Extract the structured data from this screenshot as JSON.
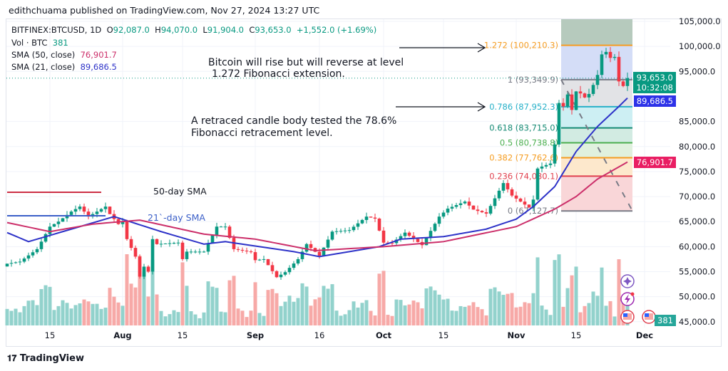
{
  "header": {
    "publisher": "edithchuama published on TradingView.com, Nov 27, 2024 13:27 UTC"
  },
  "legend": {
    "symbol": "BITFINEX:BTCUSD, 1D",
    "o_label": "O",
    "o": "92,087.0",
    "h_label": "H",
    "h": "94,070.0",
    "l_label": "L",
    "l": "91,904.0",
    "c_label": "C",
    "c": "93,653.0",
    "change": "+1,552.0 (+1.69%)",
    "vol_label": "Vol · BTC",
    "vol": "381",
    "sma50_label": "SMA (50, close)",
    "sma50": "76,901.7",
    "sma21_label": "SMA (21, close)",
    "sma21": "89,686.5"
  },
  "annotations": {
    "top_line1": "Bitcoin will rise but will reverse at level",
    "top_line2": "1.272 Fibonacci extension.",
    "mid_line1": "A retraced candle body tested the 78.6%",
    "mid_line2": "Fibonacci retracement level.",
    "sma50_text": "50-day SMA",
    "sma21_text": "21`-day SMA"
  },
  "tags": {
    "price": "93,653.0",
    "countdown": "10:32:08",
    "sma21": "89,686.5",
    "sma50": "76,901.7",
    "volume": "381"
  },
  "colors": {
    "up": "#089981",
    "down": "#f23645",
    "sma21": "#2d32c8",
    "sma50": "#cc2f6a",
    "vol_up": "#92d2cc",
    "vol_down": "#f7a9a7"
  },
  "footer": {
    "logo": "TradingView"
  },
  "chart_data": {
    "type": "candlestick",
    "ylim": [
      45000,
      105000
    ],
    "y_ticks": [
      "105,000.0",
      "100,000.0",
      "95,000.0",
      "85,000.0",
      "80,000.0",
      "75,000.0",
      "70,000.0",
      "65,000.0",
      "60,000.0",
      "55,000.0",
      "50,000.0",
      "45,000.0"
    ],
    "x_ticks": [
      [
        "2024-07-15",
        "15"
      ],
      [
        "2024-08-01",
        "Aug"
      ],
      [
        "2024-08-15",
        "15"
      ],
      [
        "2024-09-01",
        "Sep"
      ],
      [
        "2024-09-16",
        "16"
      ],
      [
        "2024-10-01",
        "Oct"
      ],
      [
        "2024-10-15",
        "15"
      ],
      [
        "2024-11-01",
        "Nov"
      ],
      [
        "2024-11-15",
        "15"
      ],
      [
        "2024-12-01",
        "Dec"
      ]
    ],
    "close_keyframes": [
      [
        "2024-07-05",
        56600
      ],
      [
        "2024-07-08",
        57000
      ],
      [
        "2024-07-12",
        59500
      ],
      [
        "2024-07-15",
        64000
      ],
      [
        "2024-07-17",
        65000
      ],
      [
        "2024-07-20",
        67000
      ],
      [
        "2024-07-22",
        68000
      ],
      [
        "2024-07-24",
        66000
      ],
      [
        "2024-07-28",
        68000
      ],
      [
        "2024-07-29",
        66500
      ],
      [
        "2024-07-31",
        64500
      ],
      [
        "2024-08-01",
        65000
      ],
      [
        "2024-08-02",
        61500
      ],
      [
        "2024-08-04",
        58000
      ],
      [
        "2024-08-05",
        54000
      ],
      [
        "2024-08-06",
        56000
      ],
      [
        "2024-08-07",
        55000
      ],
      [
        "2024-08-08",
        61500
      ],
      [
        "2024-08-09",
        60500
      ],
      [
        "2024-08-14",
        60800
      ],
      [
        "2024-08-15",
        57500
      ],
      [
        "2024-08-16",
        59000
      ],
      [
        "2024-08-20",
        59000
      ],
      [
        "2024-08-23",
        64000
      ],
      [
        "2024-08-25",
        64000
      ],
      [
        "2024-08-27",
        59500
      ],
      [
        "2024-08-31",
        58900
      ],
      [
        "2024-09-01",
        57300
      ],
      [
        "2024-09-03",
        57500
      ],
      [
        "2024-09-06",
        53900
      ],
      [
        "2024-09-08",
        54900
      ],
      [
        "2024-09-11",
        57500
      ],
      [
        "2024-09-13",
        60500
      ],
      [
        "2024-09-16",
        58200
      ],
      [
        "2024-09-19",
        63000
      ],
      [
        "2024-09-23",
        63300
      ],
      [
        "2024-09-27",
        66000
      ],
      [
        "2024-09-29",
        65600
      ],
      [
        "2024-10-01",
        60800
      ],
      [
        "2024-10-03",
        60700
      ],
      [
        "2024-10-06",
        62800
      ],
      [
        "2024-10-10",
        60300
      ],
      [
        "2024-10-14",
        66000
      ],
      [
        "2024-10-16",
        67600
      ],
      [
        "2024-10-20",
        69000
      ],
      [
        "2024-10-22",
        67400
      ],
      [
        "2024-10-25",
        66600
      ],
      [
        "2024-10-29",
        72700
      ],
      [
        "2024-10-31",
        70200
      ],
      [
        "2024-11-04",
        67800
      ],
      [
        "2024-11-05",
        69400
      ],
      [
        "2024-11-06",
        75600
      ],
      [
        "2024-11-07",
        76000
      ],
      [
        "2024-11-09",
        76600
      ],
      [
        "2024-11-10",
        80400
      ],
      [
        "2024-11-11",
        88700
      ],
      [
        "2024-11-12",
        88000
      ],
      [
        "2024-11-13",
        90400
      ],
      [
        "2024-11-14",
        87300
      ],
      [
        "2024-11-15",
        91000
      ],
      [
        "2024-11-16",
        90600
      ],
      [
        "2024-11-17",
        89800
      ],
      [
        "2024-11-18",
        90500
      ],
      [
        "2024-11-19",
        92300
      ],
      [
        "2024-11-20",
        94300
      ],
      [
        "2024-11-21",
        98400
      ],
      [
        "2024-11-22",
        98900
      ],
      [
        "2024-11-23",
        97700
      ],
      [
        "2024-11-24",
        97900
      ],
      [
        "2024-11-25",
        93000
      ],
      [
        "2024-11-26",
        92087
      ],
      [
        "2024-11-27",
        93653
      ]
    ],
    "sma21_keyframes": [
      [
        "2024-07-05",
        62800
      ],
      [
        "2024-07-10",
        61000
      ],
      [
        "2024-07-20",
        63500
      ],
      [
        "2024-07-30",
        66000
      ],
      [
        "2024-08-10",
        63000
      ],
      [
        "2024-08-20",
        60500
      ],
      [
        "2024-08-25",
        61000
      ],
      [
        "2024-09-10",
        59000
      ],
      [
        "2024-09-16",
        58000
      ],
      [
        "2024-09-30",
        60000
      ],
      [
        "2024-10-05",
        61500
      ],
      [
        "2024-10-15",
        62000
      ],
      [
        "2024-10-25",
        63500
      ],
      [
        "2024-11-01",
        65500
      ],
      [
        "2024-11-05",
        68000
      ],
      [
        "2024-11-10",
        72000
      ],
      [
        "2024-11-15",
        79000
      ],
      [
        "2024-11-20",
        84000
      ],
      [
        "2024-11-25",
        88000
      ],
      [
        "2024-11-27",
        89686.5
      ]
    ],
    "sma50_keyframes": [
      [
        "2024-07-05",
        64800
      ],
      [
        "2024-07-15",
        63000
      ],
      [
        "2024-07-25",
        64500
      ],
      [
        "2024-08-05",
        65300
      ],
      [
        "2024-08-20",
        62500
      ],
      [
        "2024-09-01",
        61500
      ],
      [
        "2024-09-15",
        59200
      ],
      [
        "2024-10-01",
        60000
      ],
      [
        "2024-10-15",
        61000
      ],
      [
        "2024-11-01",
        64000
      ],
      [
        "2024-11-10",
        67500
      ],
      [
        "2024-11-15",
        70000
      ],
      [
        "2024-11-20",
        73500
      ],
      [
        "2024-11-27",
        76901.7
      ]
    ],
    "fibonacci": {
      "start_date": "2024-11-12",
      "end_date": "2024-11-28",
      "levels": [
        {
          "ratio": "1.272",
          "value": 100210.3,
          "label": "1.272 (100,210.3)",
          "color": "#f59d22",
          "fill": "#d4ddf7"
        },
        {
          "ratio": "1",
          "value": 93349.9,
          "label": "1 (93,349.9)",
          "color": "#787b86",
          "fill": "#e2e3e6"
        },
        {
          "ratio": "0.786",
          "value": 87952.3,
          "label": "0.786 (87,952.3)",
          "color": "#26b0c8",
          "fill": "#cdeff3"
        },
        {
          "ratio": "0.618",
          "value": 83715.0,
          "label": "0.618 (83,715.0)",
          "color": "#158a74",
          "fill": "#d2ebe2"
        },
        {
          "ratio": "0.5",
          "value": 80738.8,
          "label": "0.5 (80,738.8)",
          "color": "#4caf50",
          "fill": "#e0f1de"
        },
        {
          "ratio": "0.382",
          "value": 77762.6,
          "label": "0.382 (77,762.6)",
          "color": "#f59d22",
          "fill": "#fde8cc"
        },
        {
          "ratio": "0.236",
          "value": 74080.1,
          "label": "0.236 (74,080.1)",
          "color": "#e0404f",
          "fill": "#f9d6d8"
        },
        {
          "ratio": "0",
          "value": 67127.7,
          "label": "0 (67,127.7)",
          "color": "#787b86",
          "fill": null
        }
      ],
      "top_fill": "#b6cabd"
    }
  }
}
